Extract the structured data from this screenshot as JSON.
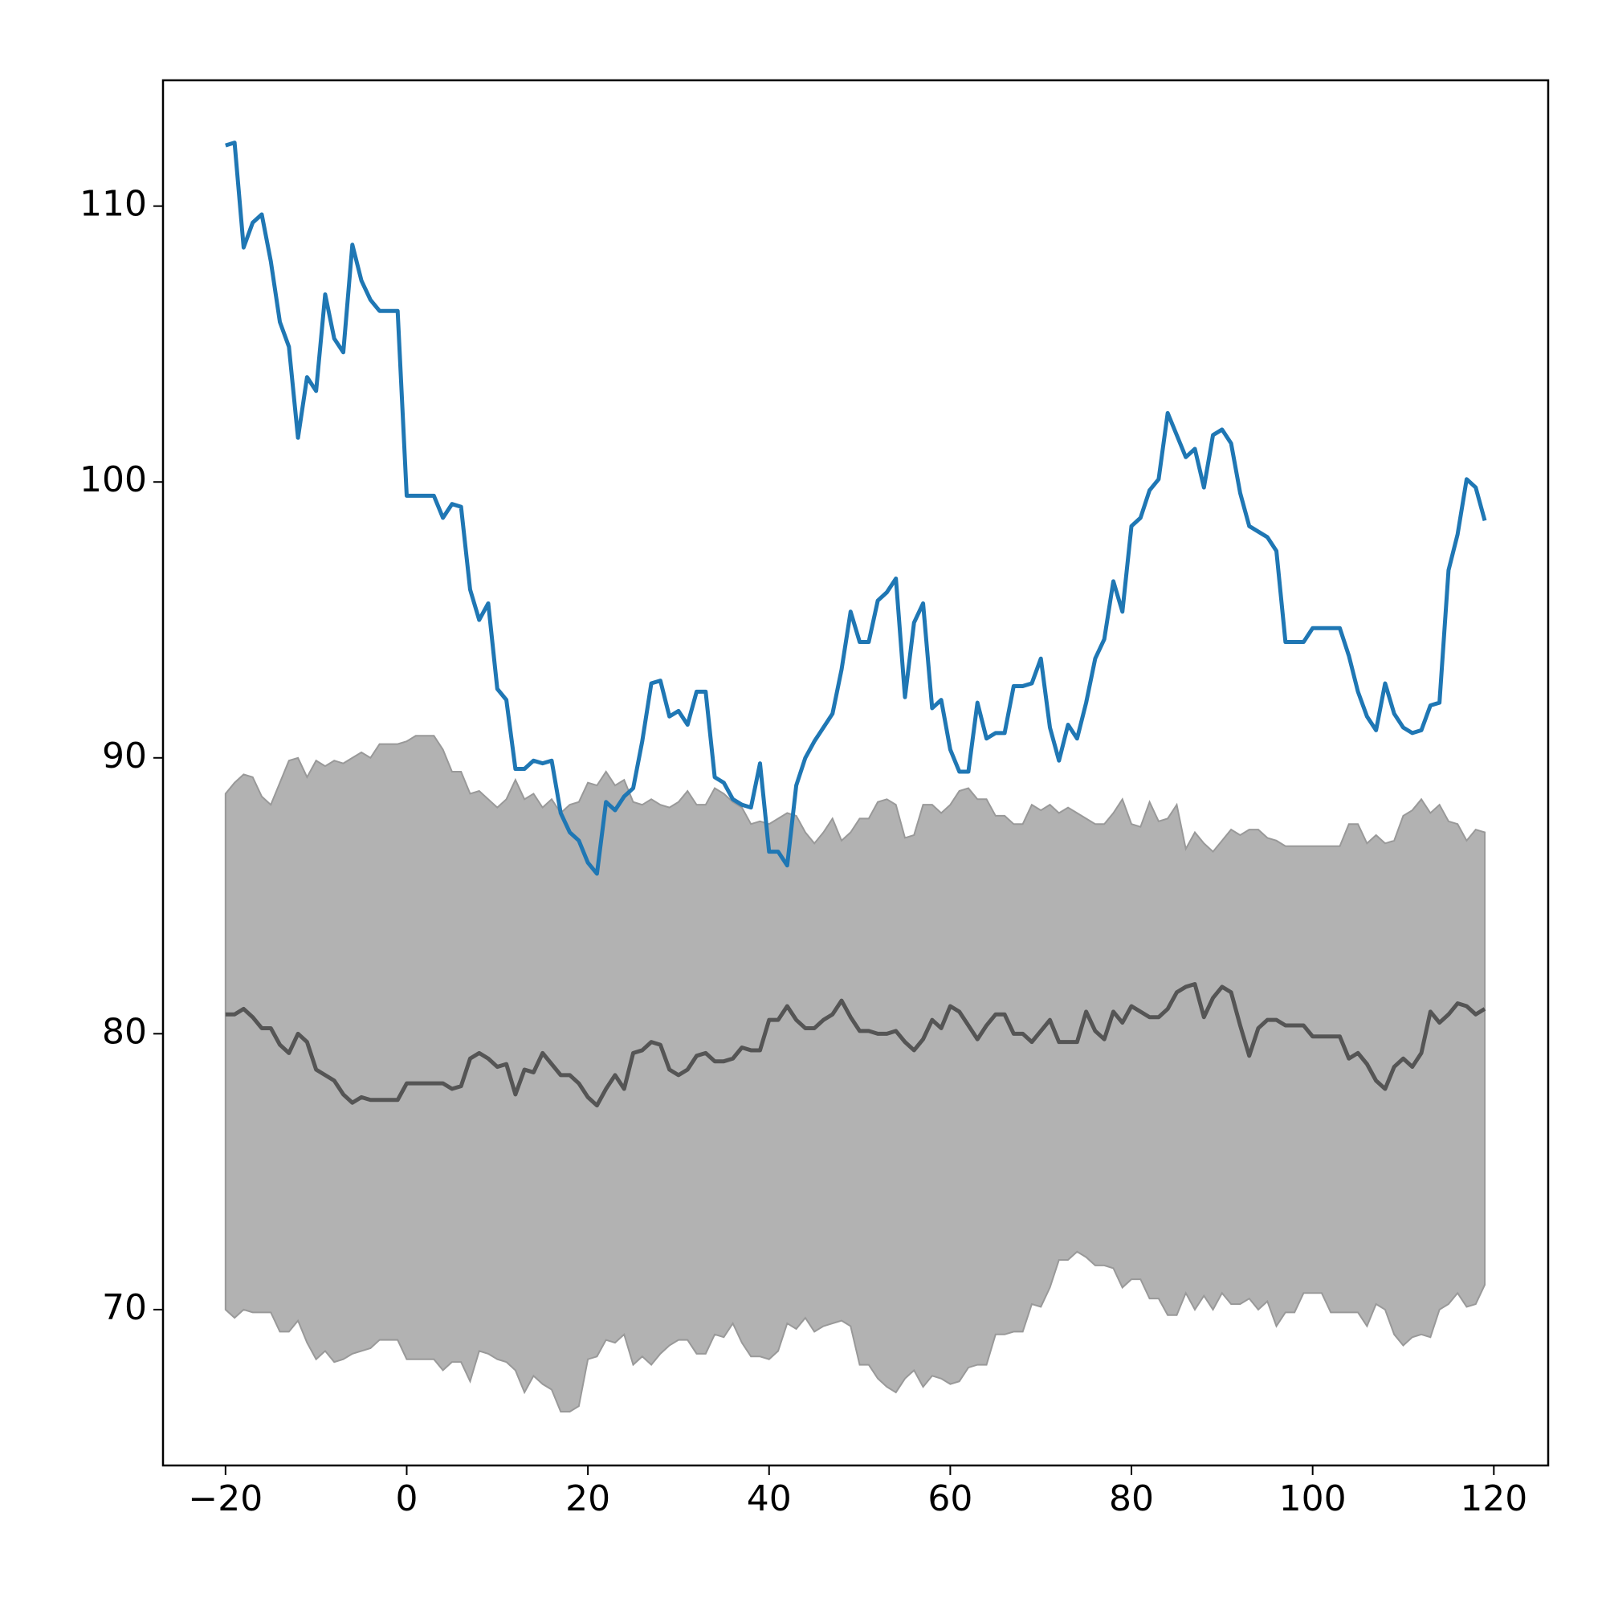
{
  "chart_data": {
    "type": "line",
    "x": [
      -20,
      -19,
      -18,
      -17,
      -16,
      -15,
      -14,
      -13,
      -12,
      -11,
      -10,
      -9,
      -8,
      -7,
      -6,
      -5,
      -4,
      -3,
      -2,
      -1,
      0,
      1,
      2,
      3,
      4,
      5,
      6,
      7,
      8,
      9,
      10,
      11,
      12,
      13,
      14,
      15,
      16,
      17,
      18,
      19,
      20,
      21,
      22,
      23,
      24,
      25,
      26,
      27,
      28,
      29,
      30,
      31,
      32,
      33,
      34,
      35,
      36,
      37,
      38,
      39,
      40,
      41,
      42,
      43,
      44,
      45,
      46,
      47,
      48,
      49,
      50,
      51,
      52,
      53,
      54,
      55,
      56,
      57,
      58,
      59,
      60,
      61,
      62,
      63,
      64,
      65,
      66,
      67,
      68,
      69,
      70,
      71,
      72,
      73,
      74,
      75,
      76,
      77,
      78,
      79,
      80,
      81,
      82,
      83,
      84,
      85,
      86,
      87,
      88,
      89,
      90,
      91,
      92,
      93,
      94,
      95,
      96,
      97,
      98,
      99,
      100,
      101,
      102,
      103,
      104,
      105,
      106,
      107,
      108,
      109,
      110,
      111,
      112,
      113,
      114,
      115,
      116,
      117,
      118,
      119
    ],
    "band": {
      "color": "#b2b2b2",
      "edge_color": "#999999",
      "upper": [
        88.7,
        89.1,
        89.4,
        89.3,
        88.6,
        88.3,
        89.1,
        89.9,
        90.0,
        89.3,
        89.9,
        89.7,
        89.9,
        89.8,
        90.0,
        90.2,
        90.0,
        90.5,
        90.5,
        90.5,
        90.6,
        90.8,
        90.8,
        90.8,
        90.3,
        89.5,
        89.5,
        88.7,
        88.8,
        88.5,
        88.2,
        88.5,
        89.2,
        88.5,
        88.7,
        88.2,
        88.5,
        88.0,
        88.3,
        88.4,
        89.1,
        89.0,
        89.5,
        89.0,
        89.2,
        88.4,
        88.3,
        88.5,
        88.3,
        88.2,
        88.4,
        88.8,
        88.3,
        88.3,
        88.9,
        88.7,
        88.4,
        88.2,
        87.6,
        87.7,
        87.6,
        87.8,
        88.0,
        87.9,
        87.3,
        86.9,
        87.3,
        87.8,
        87.0,
        87.3,
        87.8,
        87.8,
        88.4,
        88.5,
        88.3,
        87.1,
        87.2,
        88.3,
        88.3,
        88.0,
        88.3,
        88.8,
        88.9,
        88.5,
        88.5,
        87.9,
        87.9,
        87.6,
        87.6,
        88.3,
        88.1,
        88.3,
        88.0,
        88.2,
        88.0,
        87.8,
        87.6,
        87.6,
        88.0,
        88.5,
        87.6,
        87.5,
        88.4,
        87.7,
        87.8,
        88.3,
        86.7,
        87.3,
        86.9,
        86.6,
        87.0,
        87.4,
        87.2,
        87.4,
        87.4,
        87.1,
        87.0,
        86.8,
        86.8,
        86.8,
        86.8,
        86.8,
        86.8,
        86.8,
        87.6,
        87.6,
        86.9,
        87.2,
        86.9,
        87.0,
        87.9,
        88.1,
        88.5,
        88.0,
        88.3,
        87.7,
        87.6,
        87.0,
        87.4,
        87.3
      ],
      "lower": [
        70.0,
        69.7,
        70.0,
        69.9,
        69.9,
        69.9,
        69.2,
        69.2,
        69.6,
        68.8,
        68.2,
        68.5,
        68.1,
        68.2,
        68.4,
        68.5,
        68.6,
        68.9,
        68.9,
        68.9,
        68.2,
        68.2,
        68.2,
        68.2,
        67.8,
        68.1,
        68.1,
        67.4,
        68.5,
        68.4,
        68.2,
        68.1,
        67.8,
        67.0,
        67.6,
        67.3,
        67.1,
        66.3,
        66.3,
        66.5,
        68.2,
        68.3,
        68.9,
        68.8,
        69.1,
        68.0,
        68.3,
        68.0,
        68.4,
        68.7,
        68.9,
        68.9,
        68.4,
        68.4,
        69.1,
        69.0,
        69.5,
        68.8,
        68.3,
        68.3,
        68.2,
        68.5,
        69.5,
        69.3,
        69.7,
        69.2,
        69.4,
        69.5,
        69.6,
        69.4,
        68.0,
        68.0,
        67.5,
        67.2,
        67.0,
        67.5,
        67.8,
        67.2,
        67.6,
        67.5,
        67.3,
        67.4,
        67.9,
        68.0,
        68.0,
        69.1,
        69.1,
        69.2,
        69.2,
        70.2,
        70.1,
        70.8,
        71.8,
        71.8,
        72.1,
        71.9,
        71.6,
        71.6,
        71.5,
        70.8,
        71.1,
        71.1,
        70.4,
        70.4,
        69.8,
        69.8,
        70.6,
        70.0,
        70.5,
        70.0,
        70.6,
        70.2,
        70.2,
        70.4,
        70.0,
        70.3,
        69.4,
        69.9,
        69.9,
        70.6,
        70.6,
        70.6,
        69.9,
        69.9,
        69.9,
        69.9,
        69.4,
        70.2,
        70.0,
        69.1,
        68.7,
        69.0,
        69.1,
        69.0,
        70.0,
        70.2,
        70.6,
        70.1,
        70.2,
        70.9
      ]
    },
    "series": [
      {
        "color": "#1f77b4",
        "values": [
          112.2,
          112.3,
          108.5,
          109.4,
          109.7,
          108.0,
          105.8,
          104.9,
          101.6,
          103.8,
          103.3,
          106.8,
          105.2,
          104.7,
          108.6,
          107.3,
          106.6,
          106.2,
          106.2,
          106.2,
          99.5,
          99.5,
          99.5,
          99.5,
          98.7,
          99.2,
          99.1,
          96.1,
          95.0,
          95.6,
          92.5,
          92.1,
          89.6,
          89.6,
          89.9,
          89.8,
          89.9,
          88.0,
          87.3,
          87.0,
          86.2,
          85.8,
          88.4,
          88.1,
          88.6,
          88.9,
          90.6,
          92.7,
          92.8,
          91.5,
          91.7,
          91.2,
          92.4,
          92.4,
          89.3,
          89.1,
          88.5,
          88.3,
          88.2,
          89.8,
          86.6,
          86.6,
          86.1,
          89.0,
          90.0,
          90.6,
          91.1,
          91.6,
          93.2,
          95.3,
          94.2,
          94.2,
          95.7,
          96.0,
          96.5,
          92.2,
          94.9,
          95.6,
          91.8,
          92.1,
          90.3,
          89.5,
          89.5,
          92.0,
          90.7,
          90.9,
          90.9,
          92.6,
          92.6,
          92.7,
          93.6,
          91.1,
          89.9,
          91.2,
          90.7,
          92.0,
          93.6,
          94.3,
          96.4,
          95.3,
          98.4,
          98.7,
          99.7,
          100.1,
          102.5,
          101.7,
          100.9,
          101.2,
          99.8,
          101.7,
          101.9,
          101.4,
          99.6,
          98.4,
          98.2,
          98.0,
          97.5,
          94.2,
          94.2,
          94.2,
          94.7,
          94.7,
          94.7,
          94.7,
          93.7,
          92.4,
          91.5,
          91.0,
          92.7,
          91.6,
          91.1,
          90.9,
          91.0,
          91.9,
          92.0,
          96.8,
          98.1,
          100.1,
          99.8,
          98.6
        ]
      },
      {
        "color": "#555555",
        "values": [
          80.7,
          80.7,
          80.9,
          80.6,
          80.2,
          80.2,
          79.6,
          79.3,
          80.0,
          79.7,
          78.7,
          78.5,
          78.3,
          77.8,
          77.5,
          77.7,
          77.6,
          77.6,
          77.6,
          77.6,
          78.2,
          78.2,
          78.2,
          78.2,
          78.2,
          78.0,
          78.1,
          79.1,
          79.3,
          79.1,
          78.8,
          78.9,
          77.8,
          78.7,
          78.6,
          79.3,
          78.9,
          78.5,
          78.5,
          78.2,
          77.7,
          77.4,
          78.0,
          78.5,
          78.0,
          79.3,
          79.4,
          79.7,
          79.6,
          78.7,
          78.5,
          78.7,
          79.2,
          79.3,
          79.0,
          79.0,
          79.1,
          79.5,
          79.4,
          79.4,
          80.5,
          80.5,
          81.0,
          80.5,
          80.2,
          80.2,
          80.5,
          80.7,
          81.2,
          80.6,
          80.1,
          80.1,
          80.0,
          80.0,
          80.1,
          79.7,
          79.4,
          79.8,
          80.5,
          80.2,
          81.0,
          80.8,
          80.3,
          79.8,
          80.3,
          80.7,
          80.7,
          80.0,
          80.0,
          79.7,
          80.1,
          80.5,
          79.7,
          79.7,
          79.7,
          80.8,
          80.1,
          79.8,
          80.8,
          80.4,
          81.0,
          80.8,
          80.6,
          80.6,
          80.9,
          81.5,
          81.7,
          81.8,
          80.6,
          81.3,
          81.7,
          81.5,
          80.3,
          79.2,
          80.2,
          80.5,
          80.5,
          80.3,
          80.3,
          80.3,
          79.9,
          79.9,
          79.9,
          79.9,
          79.1,
          79.3,
          78.9,
          78.3,
          78.0,
          78.8,
          79.1,
          78.8,
          79.3,
          80.8,
          80.4,
          80.7,
          81.1,
          81.0,
          80.7,
          80.9
        ]
      }
    ],
    "xlim": [
      -26.9,
      126.0
    ],
    "ylim": [
      64.35,
      114.56
    ],
    "xticks": [
      {
        "value": -20,
        "label": "−20"
      },
      0,
      20,
      40,
      60,
      80,
      100,
      120
    ],
    "yticks": [
      70,
      80,
      90,
      100,
      110
    ]
  }
}
